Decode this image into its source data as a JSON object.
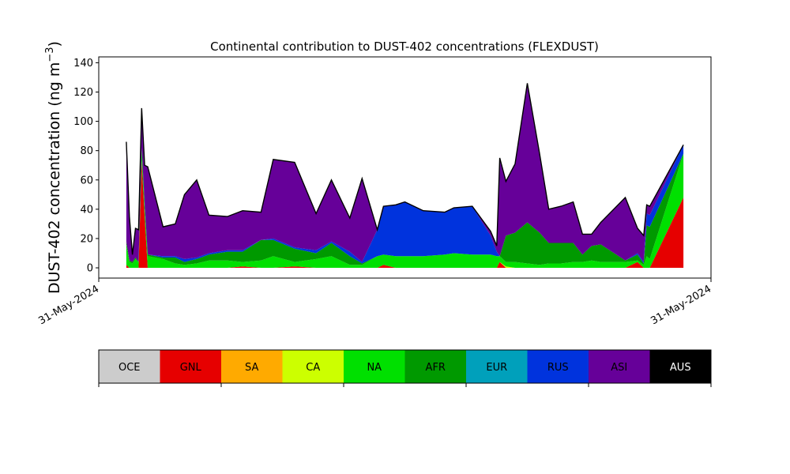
{
  "chart_data": {
    "type": "area",
    "title": "Continental contribution to DUST-402 concentrations (FLEXDUST)",
    "ylabel": "DUST-402 concentration (ng m",
    "ylabel_sup": "−3",
    "ylabel_end": ")",
    "xlabel": "",
    "ylim": [
      -7,
      144
    ],
    "yticks": [
      0,
      20,
      40,
      60,
      80,
      100,
      120,
      140
    ],
    "xlim": [
      0,
      100
    ],
    "xtick_labels": [
      {
        "x": 0,
        "label": "31-May-2024"
      },
      {
        "x": 100,
        "label": "31-May-2024"
      }
    ],
    "stacked": true,
    "x": [
      4.5,
      5.0,
      5.5,
      6.0,
      6.5,
      7.0,
      7.5,
      8.0,
      10.5,
      12.5,
      14.0,
      16.0,
      18.0,
      21.0,
      23.5,
      26.5,
      28.5,
      32.0,
      35.5,
      38.0,
      41.0,
      43.0,
      45.5,
      46.5,
      48.5,
      50.0,
      53.0,
      56.5,
      58.0,
      61.0,
      64.0,
      65.0,
      65.5,
      66.5,
      68.0,
      70.0,
      72.0,
      73.5,
      75.5,
      77.5,
      79.0,
      80.5,
      82.0,
      86.0,
      88.0,
      89.0,
      89.5,
      90.0,
      95.5
    ],
    "series": [
      {
        "name": "GNL",
        "color": "#e60000",
        "values": [
          2,
          0,
          0,
          0,
          0,
          73,
          35,
          0,
          0,
          0,
          0,
          0,
          0,
          0,
          1,
          0,
          0,
          1,
          0,
          0,
          0,
          0,
          0,
          2,
          0,
          0,
          0,
          0,
          0,
          0,
          0,
          0,
          4,
          0,
          0,
          0,
          0,
          0,
          0,
          0,
          0,
          0,
          0,
          0,
          4,
          0,
          0,
          0,
          48
        ]
      },
      {
        "name": "CA",
        "color": "#ccff00",
        "values": [
          0,
          0,
          0,
          0,
          0,
          0,
          0,
          0,
          0,
          0,
          0,
          0,
          0,
          0,
          0,
          0,
          0,
          0,
          0,
          0,
          0,
          0,
          0,
          0,
          0,
          0,
          0,
          0,
          0,
          0,
          0,
          0,
          0,
          1,
          0,
          0,
          0,
          0,
          0,
          0,
          0,
          0,
          0,
          0,
          0,
          0,
          0,
          0,
          0
        ]
      },
      {
        "name": "NA",
        "color": "#00e000",
        "values": [
          14,
          4,
          3,
          6,
          4,
          8,
          6,
          8,
          6,
          3,
          2,
          3,
          5,
          5,
          3,
          5,
          8,
          3,
          6,
          8,
          2,
          2,
          8,
          7,
          8,
          8,
          8,
          9,
          10,
          9,
          9,
          8,
          4,
          3,
          4,
          3,
          2,
          3,
          3,
          4,
          4,
          5,
          4,
          4,
          1,
          2,
          8,
          6,
          30
        ]
      },
      {
        "name": "AFR",
        "color": "#009900",
        "values": [
          2,
          1,
          1,
          1,
          0,
          1,
          3,
          1,
          1,
          4,
          2,
          3,
          4,
          6,
          7,
          14,
          11,
          9,
          4,
          9,
          6,
          1,
          0,
          0,
          0,
          0,
          0,
          0,
          0,
          0,
          0,
          0,
          0,
          18,
          20,
          28,
          22,
          14,
          14,
          13,
          5,
          10,
          12,
          1,
          4,
          1,
          21,
          22,
          0
        ]
      },
      {
        "name": "RUS",
        "color": "#0033dd",
        "values": [
          0,
          0,
          0,
          0,
          0,
          0,
          0,
          0,
          1,
          1,
          2,
          1,
          1,
          1,
          1,
          0,
          1,
          1,
          2,
          1,
          3,
          1,
          18,
          33,
          35,
          37,
          31,
          29,
          31,
          33,
          13,
          3,
          0,
          0,
          0,
          0,
          0,
          0,
          0,
          0,
          0,
          0,
          0,
          0,
          1,
          1,
          8,
          8,
          6
        ]
      },
      {
        "name": "ASI",
        "color": "#660099",
        "values": [
          68,
          30,
          5,
          20,
          22,
          27,
          26,
          60,
          20,
          22,
          44,
          53,
          26,
          23,
          27,
          19,
          54,
          58,
          25,
          42,
          23,
          57,
          0,
          0,
          0,
          0,
          0,
          0,
          0,
          0,
          3,
          4,
          67,
          37,
          47,
          95,
          54,
          23,
          25,
          28,
          14,
          8,
          15,
          43,
          17,
          18,
          6,
          6,
          0
        ]
      }
    ]
  },
  "legend": {
    "items": [
      {
        "name": "OCE",
        "color": "#cccccc"
      },
      {
        "name": "GNL",
        "color": "#e60000"
      },
      {
        "name": "SA",
        "color": "#ffaa00"
      },
      {
        "name": "CA",
        "color": "#ccff00"
      },
      {
        "name": "NA",
        "color": "#00e000"
      },
      {
        "name": "AFR",
        "color": "#009900"
      },
      {
        "name": "EUR",
        "color": "#00a0bb"
      },
      {
        "name": "RUS",
        "color": "#0033dd"
      },
      {
        "name": "ASI",
        "color": "#660099"
      },
      {
        "name": "AUS",
        "color": "#000000"
      }
    ]
  }
}
